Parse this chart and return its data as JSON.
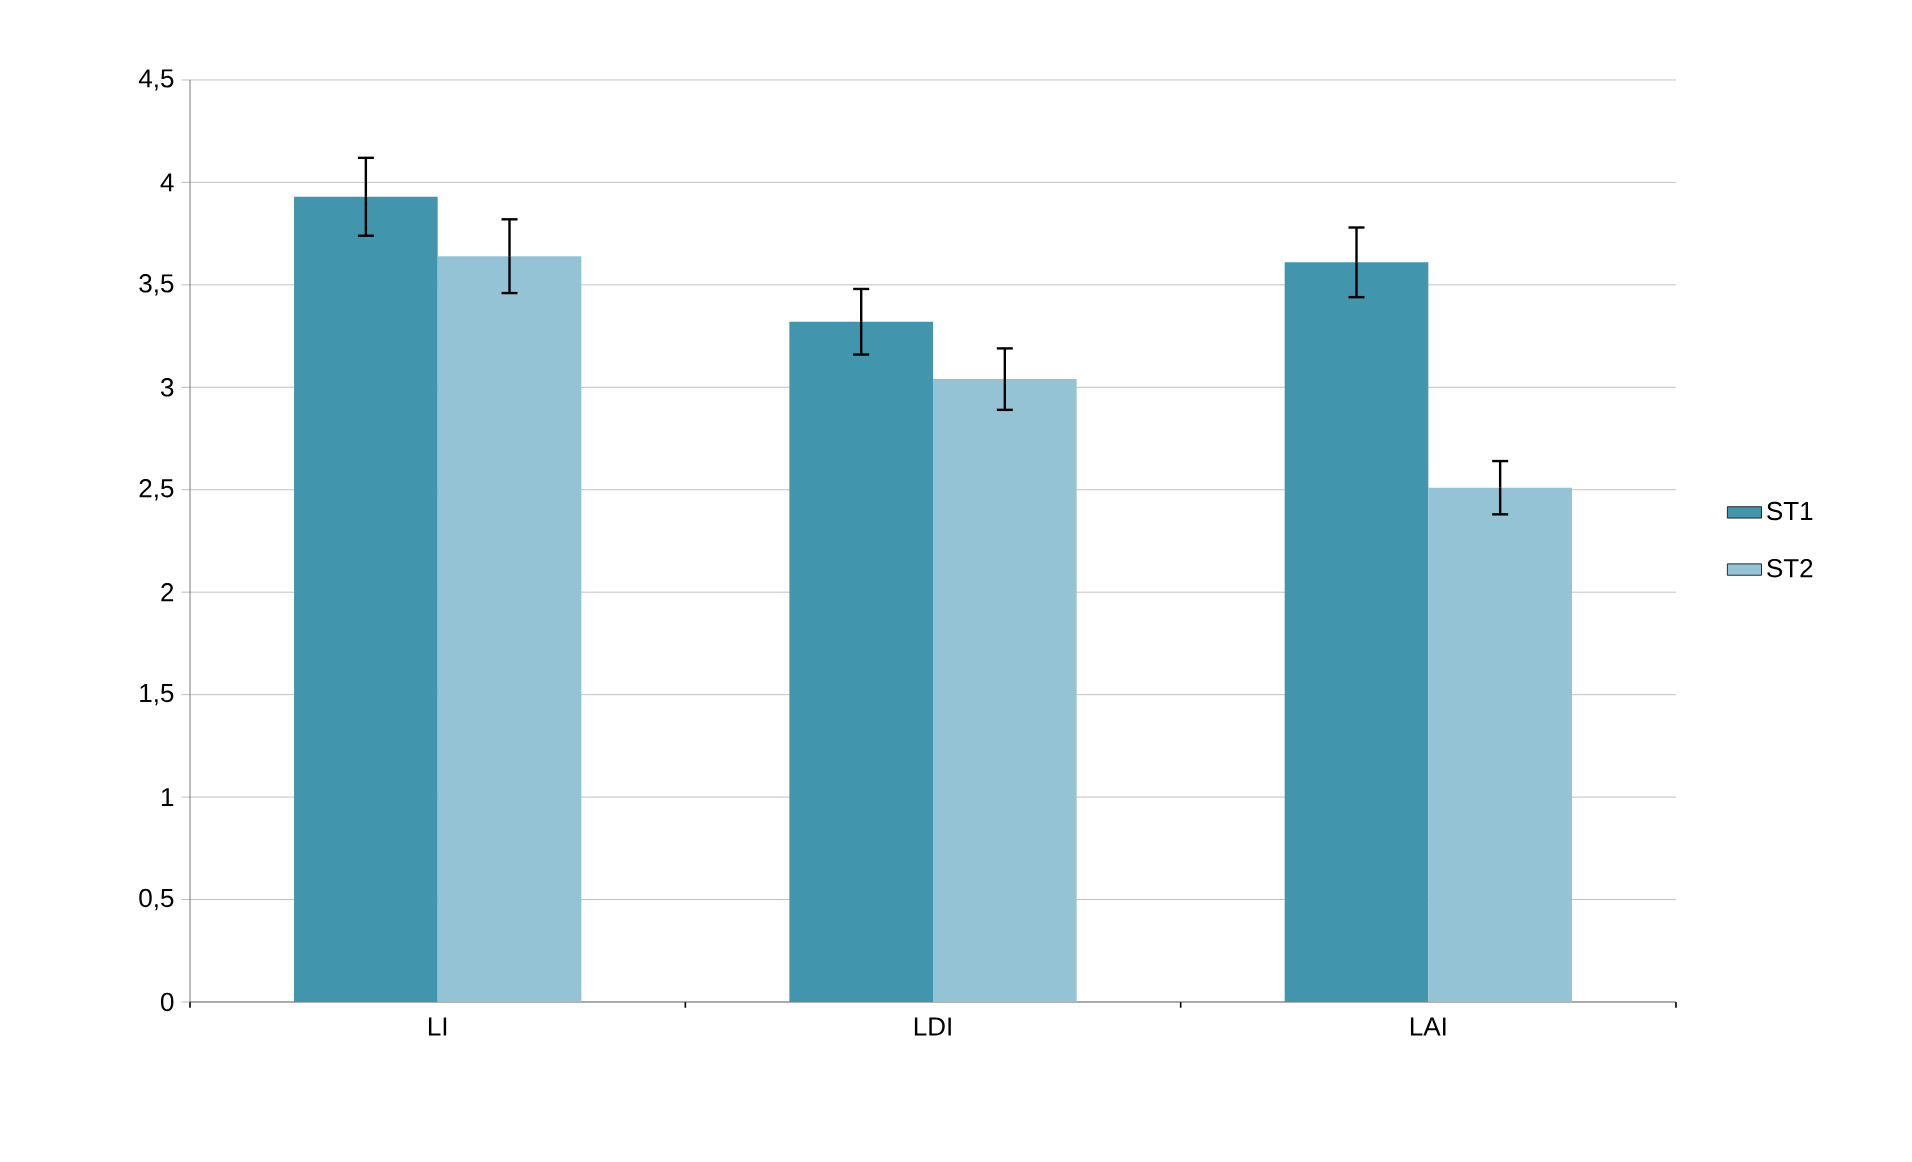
{
  "chart_data": {
    "type": "bar",
    "categories": [
      "LI",
      "LDI",
      "LAI"
    ],
    "series": [
      {
        "name": "ST1",
        "color": "#4196ae",
        "values": [
          3.93,
          3.32,
          3.61
        ],
        "errors": [
          0.19,
          0.16,
          0.17
        ]
      },
      {
        "name": "ST2",
        "color": "#93c3d4",
        "values": [
          3.64,
          3.04,
          2.51
        ],
        "errors": [
          0.18,
          0.15,
          0.13
        ]
      }
    ],
    "ylim": [
      0,
      4.5
    ],
    "yticks": [
      0,
      {
        "value": 0.5,
        "label": "0,5"
      },
      1,
      {
        "value": 1.5,
        "label": "1,5"
      },
      2,
      {
        "value": 2.5,
        "label": "2,5"
      },
      3,
      {
        "value": 3.5,
        "label": "3,5"
      },
      4,
      {
        "value": 4.5,
        "label": "4,5"
      }
    ],
    "grid": "y",
    "legend": "right"
  }
}
